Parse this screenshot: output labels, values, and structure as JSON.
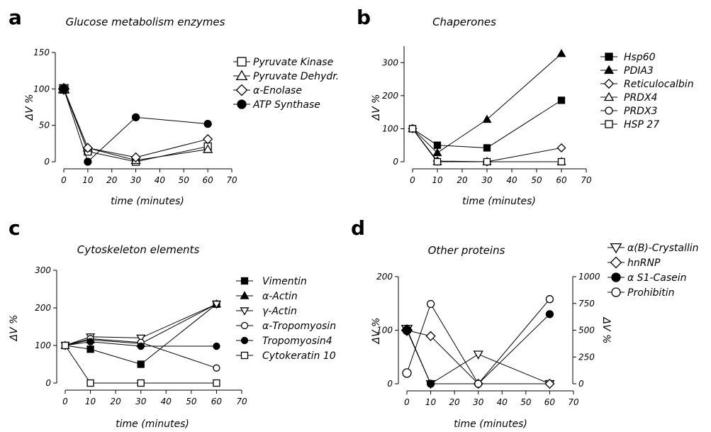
{
  "figure": {
    "panel_letters": [
      "a",
      "b",
      "c",
      "d"
    ]
  },
  "chart_data": [
    {
      "type": "line",
      "title": "Glucose metabolism enzymes",
      "xlabel": "time (minutes)",
      "ylabel": "ΔV %",
      "xlim": [
        0,
        70
      ],
      "ylim": [
        0,
        150
      ],
      "xticks": [
        0,
        10,
        20,
        30,
        40,
        50,
        60,
        70
      ],
      "yticks": [
        0,
        50,
        100,
        150
      ],
      "x": [
        0,
        10,
        30,
        60
      ],
      "legend": "right",
      "grid": false,
      "series": [
        {
          "name": "Pyruvate Kinase",
          "marker": "square-open",
          "values": [
            100,
            14,
            0,
            21
          ]
        },
        {
          "name": "Pyruvate Dehydr.",
          "marker": "triangle-up-open",
          "values": [
            100,
            19,
            2,
            17
          ]
        },
        {
          "name": "α-Enolase",
          "marker": "diamond-open",
          "values": [
            100,
            19,
            6,
            31
          ]
        },
        {
          "name": "ATP Synthase",
          "marker": "circle-filled",
          "values": [
            100,
            0,
            61,
            52
          ]
        }
      ]
    },
    {
      "type": "line",
      "title": "Chaperones",
      "xlabel": "time (minutes)",
      "ylabel": "ΔV %",
      "xlim": [
        0,
        70
      ],
      "ylim": [
        0,
        350
      ],
      "xticks": [
        0,
        10,
        20,
        30,
        40,
        50,
        60,
        70
      ],
      "yticks": [
        0,
        100,
        200,
        300
      ],
      "x": [
        0,
        10,
        30,
        60
      ],
      "legend": "right",
      "grid": false,
      "series": [
        {
          "name": "Hsp60",
          "marker": "square-filled",
          "values": [
            100,
            50,
            42,
            186
          ]
        },
        {
          "name": "PDIA3",
          "marker": "triangle-up-filled",
          "values": [
            100,
            27,
            128,
            327
          ]
        },
        {
          "name": "Reticulocalbin",
          "marker": "diamond-open",
          "values": [
            100,
            2,
            0,
            42
          ]
        },
        {
          "name": "PRDX4",
          "marker": "triangle-up-open",
          "values": [
            100,
            0,
            0,
            0
          ]
        },
        {
          "name": "PRDX3",
          "marker": "circle-open",
          "values": [
            100,
            0,
            0,
            0
          ]
        },
        {
          "name": "HSP 27",
          "marker": "square-open",
          "values": [
            100,
            0,
            0,
            0
          ]
        }
      ]
    },
    {
      "type": "line",
      "title": "Cytoskeleton elements",
      "xlabel": "time (minutes)",
      "ylabel": "ΔV %",
      "xlim": [
        0,
        70
      ],
      "ylim": [
        0,
        300
      ],
      "xticks": [
        0,
        10,
        20,
        30,
        40,
        50,
        60,
        70
      ],
      "yticks": [
        0,
        100,
        200,
        300
      ],
      "x": [
        0,
        10,
        30,
        60
      ],
      "legend": "right",
      "grid": false,
      "series": [
        {
          "name": "Vimentin",
          "marker": "square-filled",
          "values": [
            100,
            90,
            50,
            210
          ]
        },
        {
          "name": "α-Actin",
          "marker": "triangle-up-filled",
          "values": [
            100,
            115,
            105,
            210
          ]
        },
        {
          "name": "γ-Actin",
          "marker": "triangle-down-open",
          "values": [
            100,
            123,
            120,
            210
          ]
        },
        {
          "name": "α-Tropomyosin",
          "marker": "circle-open",
          "values": [
            100,
            118,
            108,
            40
          ]
        },
        {
          "name": "Tropomyosin4",
          "marker": "circle-filled",
          "values": [
            100,
            110,
            98,
            98
          ]
        },
        {
          "name": "Cytokeratin 10",
          "marker": "square-open",
          "values": [
            100,
            0,
            0,
            0
          ]
        }
      ]
    },
    {
      "type": "line",
      "title": "Other proteins",
      "xlabel": "time (minutes)",
      "ylabel": "ΔV %",
      "ylabel_right": "ΔV %",
      "xlim": [
        0,
        70
      ],
      "ylim": [
        0,
        200
      ],
      "ylim_right": [
        0,
        1000
      ],
      "xticks": [
        0,
        10,
        20,
        30,
        40,
        50,
        60,
        70
      ],
      "yticks": [
        0,
        100,
        200
      ],
      "yticks_right": [
        0,
        250,
        500,
        750,
        1000
      ],
      "x": [
        0,
        10,
        30,
        60
      ],
      "legend": "top-right",
      "grid": false,
      "series": [
        {
          "name": "α(B)-Crystallin",
          "marker": "triangle-down-open",
          "axis": "left",
          "values": [
            102,
            0,
            55,
            0
          ]
        },
        {
          "name": "hnRNP",
          "marker": "diamond-open",
          "axis": "left",
          "values": [
            100,
            89,
            0,
            0
          ]
        },
        {
          "name": "α S1-Casein",
          "marker": "circle-filled",
          "axis": "right",
          "values": [
            500,
            0,
            0,
            650
          ]
        },
        {
          "name": "Prohibitin",
          "marker": "circle-open",
          "axis": "right",
          "values": [
            100,
            745,
            0,
            790
          ]
        }
      ]
    }
  ]
}
